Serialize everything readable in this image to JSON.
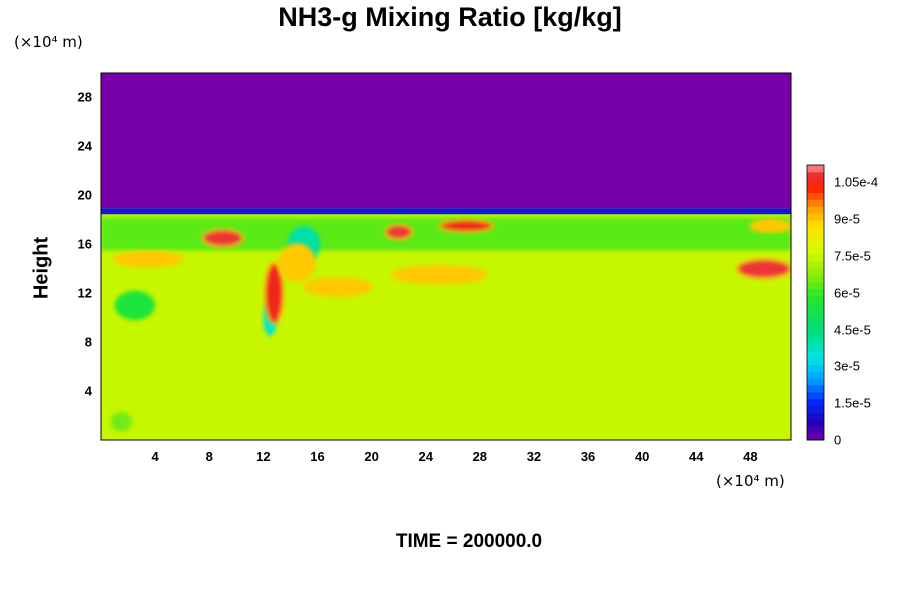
{
  "chart_data": {
    "type": "heatmap",
    "title": "NH3-g Mixing Ratio [kg/kg]",
    "ylabel": "Height",
    "y_unit": "(×10⁴ m)",
    "x_unit": "(×10⁴ m)",
    "footer": "TIME = 200000.0",
    "xlim": [
      0,
      51
    ],
    "ylim": [
      0,
      30
    ],
    "x_ticks": [
      4,
      8,
      12,
      16,
      20,
      24,
      28,
      32,
      36,
      40,
      44,
      48
    ],
    "y_ticks": [
      4,
      8,
      12,
      16,
      20,
      24,
      28
    ],
    "colorbar": {
      "range": [
        0,
        0.000112
      ],
      "tick_labels": [
        "0",
        "1.5e-5",
        "3e-5",
        "4.5e-5",
        "6e-5",
        "7.5e-5",
        "9e-5",
        "1.05e-4"
      ],
      "tick_values": [
        0,
        1.5e-05,
        3e-05,
        4.5e-05,
        6e-05,
        7.5e-05,
        9e-05,
        0.000105
      ]
    },
    "field": {
      "background_upper": 0,
      "background_lower": 7.5e-05,
      "tropopause_height": 18.7,
      "green_band": {
        "y0": 15.5,
        "y1": 18.2,
        "value": 6.3e-05
      },
      "red_streaks": [
        {
          "x": 3.5,
          "y": 14.8,
          "rx": 2.5,
          "ry": 0.6,
          "value": 9e-05
        },
        {
          "x": 9,
          "y": 16.5,
          "rx": 1.5,
          "ry": 0.7,
          "value": 0.000108
        },
        {
          "x": 12.8,
          "y": 12,
          "rx": 0.7,
          "ry": 2.5,
          "value": 0.000106
        },
        {
          "x": 14.5,
          "y": 14.5,
          "rx": 1.3,
          "ry": 1.5,
          "value": 9e-05
        },
        {
          "x": 17.5,
          "y": 12.5,
          "rx": 2.5,
          "ry": 0.7,
          "value": 9e-05
        },
        {
          "x": 22,
          "y": 17,
          "rx": 1.0,
          "ry": 0.6,
          "value": 0.000108
        },
        {
          "x": 25,
          "y": 13.5,
          "rx": 3.5,
          "ry": 0.7,
          "value": 9e-05
        },
        {
          "x": 27,
          "y": 17.5,
          "rx": 2.0,
          "ry": 0.5,
          "value": 0.000106
        },
        {
          "x": 49,
          "y": 14,
          "rx": 2.0,
          "ry": 0.8,
          "value": 0.000108
        },
        {
          "x": 49.5,
          "y": 17.5,
          "rx": 1.5,
          "ry": 0.5,
          "value": 9e-05
        }
      ],
      "green_blobs": [
        {
          "x": 2.5,
          "y": 11,
          "rx": 1.5,
          "ry": 1.2,
          "value": 5.5e-05
        },
        {
          "x": 1.5,
          "y": 1.5,
          "rx": 0.8,
          "ry": 0.8,
          "value": 6.5e-05
        },
        {
          "x": 15,
          "y": 16,
          "rx": 1.2,
          "ry": 1.5,
          "value": 4e-05
        },
        {
          "x": 12.5,
          "y": 10,
          "rx": 0.5,
          "ry": 1.5,
          "value": 3.5e-05
        }
      ]
    }
  }
}
